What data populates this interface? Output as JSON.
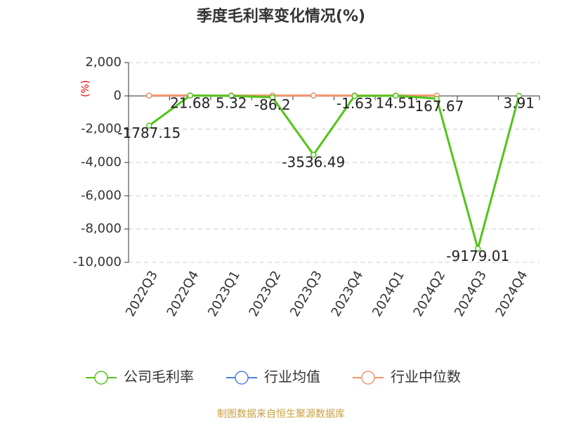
{
  "chart_data": {
    "type": "line",
    "title": "季度毛利率变化情况(%)",
    "y_label": "(%)",
    "source": "制图数据来自恒生聚源数据库",
    "categories": [
      "2022Q3",
      "2022Q4",
      "2023Q1",
      "2023Q2",
      "2023Q3",
      "2023Q4",
      "2024Q1",
      "2024Q2",
      "2024Q3",
      "2024Q4"
    ],
    "series": [
      {
        "name": "公司毛利率",
        "color": "#52c41a",
        "values": [
          -1787.15,
          21.68,
          5.32,
          -86.2,
          -3536.49,
          -1.63,
          14.51,
          -167.67,
          -9179.01,
          3.91
        ],
        "labels": true
      },
      {
        "name": "行业均值",
        "color": "#4e7fdc",
        "values": [
          15,
          18,
          16,
          14,
          17,
          15,
          16,
          14,
          null,
          null
        ],
        "labels": false
      },
      {
        "name": "行业中位数",
        "color": "#f0956a",
        "values": [
          20,
          22,
          21,
          19,
          20,
          21,
          22,
          20,
          null,
          null
        ],
        "labels": false
      }
    ],
    "ylim": [
      -10000,
      2000
    ],
    "yticks": [
      {
        "value": 2000,
        "label": "2,000"
      },
      0,
      {
        "value": -2000,
        "label": "-2,000"
      },
      {
        "value": -4000,
        "label": "-4,000"
      },
      {
        "value": -6000,
        "label": "-6,000"
      },
      {
        "value": -8000,
        "label": "-8,000"
      },
      {
        "value": -10000,
        "label": "-10,000"
      }
    ],
    "grid": true
  }
}
